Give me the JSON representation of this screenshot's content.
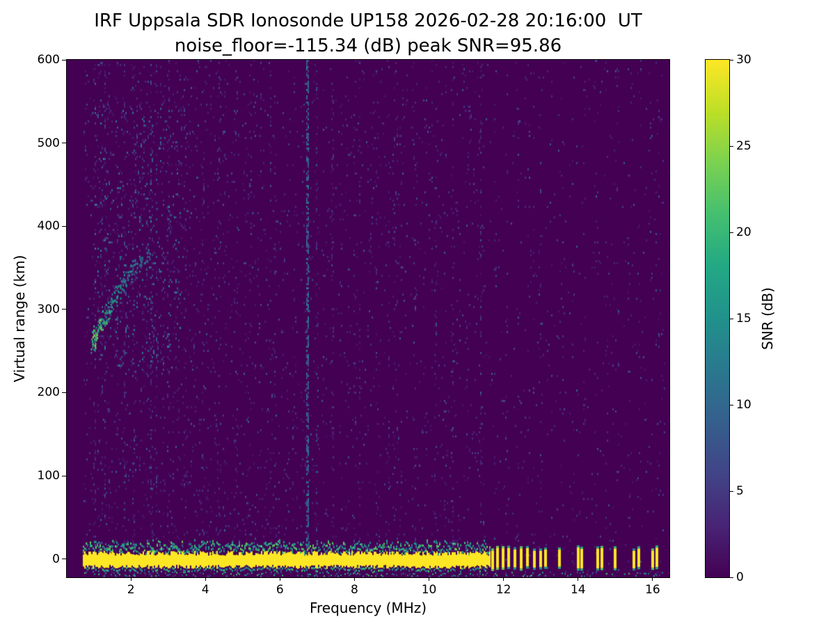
{
  "title": {
    "line1": "IRF Uppsala SDR Ionosonde UP158 2026-02-28 20:16:00  UT",
    "line2": "noise_floor=-115.34 (dB) peak SNR=95.86"
  },
  "axes": {
    "xlabel": "Frequency (MHz)",
    "ylabel": "Virtual range (km)"
  },
  "colorbar": {
    "label": "SNR (dB)",
    "min": 0,
    "max": 30,
    "ticks": [
      0,
      5,
      10,
      15,
      20,
      25,
      30
    ]
  },
  "chart_data": {
    "type": "heatmap",
    "title": "IRF Uppsala SDR Ionosonde UP158 2026-02-28 20:16:00  UT",
    "subtitle": "noise_floor=-115.34 (dB) peak SNR=95.86",
    "station": "UP158",
    "timestamp_ut": "2026-02-28 20:16:00",
    "noise_floor_db": -115.34,
    "peak_snr_db": 95.86,
    "xlabel": "Frequency (MHz)",
    "ylabel": "Virtual range (km)",
    "xlim": [
      0.28,
      16.45
    ],
    "ylim": [
      -22,
      600
    ],
    "xticks": [
      2,
      4,
      6,
      8,
      10,
      12,
      14,
      16
    ],
    "yticks": [
      0,
      100,
      200,
      300,
      400,
      500,
      600
    ],
    "colorbar": {
      "label": "SNR (dB)",
      "min": 0,
      "max": 30,
      "ticks": [
        0,
        5,
        10,
        15,
        20,
        25,
        30
      ],
      "colormap": "viridis"
    },
    "colormap_stops": [
      "#440154",
      "#482475",
      "#414487",
      "#355f8d",
      "#2a788e",
      "#21918c",
      "#22a884",
      "#44bf70",
      "#7ad151",
      "#bddf26",
      "#fde725"
    ],
    "features": {
      "data_freq_range": [
        0.7,
        16.33
      ],
      "ground_band": {
        "freq_start": 0.72,
        "freq_end": 11.62,
        "range_top": 10,
        "range_bottom": -12,
        "snr": 30
      },
      "hf_dashes": [
        11.7,
        11.84,
        11.98,
        12.13,
        12.3,
        12.47,
        12.64,
        12.82,
        13.0,
        13.12,
        13.5,
        14.0,
        14.1,
        14.52,
        14.64,
        15.0,
        15.5,
        15.62,
        16.0,
        16.12
      ],
      "echo_trace": [
        [
          0.98,
          258,
          24
        ],
        [
          1.02,
          266,
          26
        ],
        [
          1.06,
          272,
          26
        ],
        [
          1.12,
          278,
          25
        ],
        [
          1.2,
          284,
          24
        ],
        [
          1.28,
          291,
          23
        ],
        [
          1.36,
          298,
          22
        ],
        [
          1.45,
          306,
          21
        ],
        [
          1.55,
          314,
          20
        ],
        [
          1.65,
          322,
          19
        ],
        [
          1.75,
          330,
          18
        ],
        [
          1.86,
          338,
          17
        ],
        [
          1.98,
          345,
          16
        ],
        [
          2.12,
          352,
          15
        ],
        [
          2.28,
          358,
          14
        ],
        [
          2.45,
          364,
          13
        ]
      ],
      "diffuse_cloud": {
        "freq_range": [
          1.0,
          3.35
        ],
        "range_range": [
          230,
          545
        ]
      },
      "noisy_columns": [
        {
          "f": 1.35,
          "s": 0.1
        },
        {
          "f": 1.62,
          "s": 0.12
        },
        {
          "f": 2.05,
          "s": 0.15
        },
        {
          "f": 2.55,
          "s": 0.22
        },
        {
          "f": 3.0,
          "s": 0.15
        },
        {
          "f": 3.45,
          "s": 0.1
        },
        {
          "f": 3.9,
          "s": 0.08
        },
        {
          "f": 4.35,
          "s": 0.12
        },
        {
          "f": 4.8,
          "s": 0.08
        },
        {
          "f": 5.2,
          "s": 0.1
        },
        {
          "f": 5.85,
          "s": 0.08
        },
        {
          "f": 6.72,
          "s": 0.75
        },
        {
          "f": 7.4,
          "s": 0.1
        },
        {
          "f": 8.0,
          "s": 0.08
        },
        {
          "f": 8.6,
          "s": 0.08
        },
        {
          "f": 9.05,
          "s": 0.1
        },
        {
          "f": 9.6,
          "s": 0.08
        },
        {
          "f": 10.15,
          "s": 0.08
        },
        {
          "f": 10.6,
          "s": 0.08
        },
        {
          "f": 11.05,
          "s": 0.1
        },
        {
          "f": 11.35,
          "s": 0.08
        },
        {
          "f": 11.75,
          "s": 0.08
        },
        {
          "f": 12.05,
          "s": 0.08
        },
        {
          "f": 12.35,
          "s": 0.06
        },
        {
          "f": 12.65,
          "s": 0.06
        },
        {
          "f": 12.95,
          "s": 0.06
        },
        {
          "f": 13.25,
          "s": 0.05
        },
        {
          "f": 13.55,
          "s": 0.06
        },
        {
          "f": 13.85,
          "s": 0.05
        },
        {
          "f": 14.15,
          "s": 0.06
        },
        {
          "f": 14.45,
          "s": 0.05
        },
        {
          "f": 14.75,
          "s": 0.05
        },
        {
          "f": 15.05,
          "s": 0.06
        },
        {
          "f": 15.35,
          "s": 0.05
        },
        {
          "f": 15.65,
          "s": 0.05
        },
        {
          "f": 15.95,
          "s": 0.06
        },
        {
          "f": 16.15,
          "s": 0.05
        }
      ],
      "bottom_row": {
        "range": -17,
        "freq_start": 0.75,
        "freq_end": 16.3
      }
    }
  }
}
